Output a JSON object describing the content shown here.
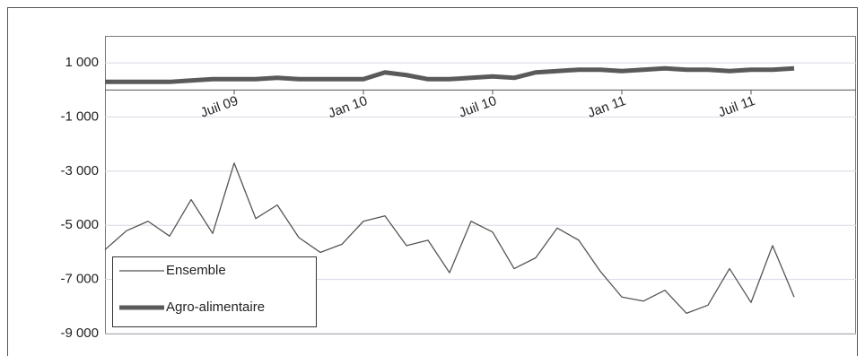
{
  "chart_data": {
    "type": "line",
    "categories": [
      null,
      null,
      null,
      null,
      null,
      null,
      "Juil 09",
      null,
      null,
      null,
      null,
      null,
      "Jan 10",
      null,
      null,
      null,
      null,
      null,
      "Juil 10",
      null,
      null,
      null,
      null,
      null,
      "Jan 11",
      null,
      null,
      null,
      null,
      null,
      "Juil 11",
      null,
      null
    ],
    "series": [
      {
        "name": "Ensemble",
        "color": "#555555",
        "values": [
          -5900,
          -5200,
          -4850,
          -5400,
          -4050,
          -5300,
          -2700,
          -4750,
          -4250,
          -5450,
          -6000,
          -5700,
          -4850,
          -4650,
          -5750,
          -5550,
          -6750,
          -4850,
          -5250,
          -6600,
          -6200,
          -5100,
          -5550,
          -6700,
          -7650,
          -7800,
          -7400,
          -8250,
          -7950,
          -6600,
          -7850,
          -5750,
          -7650
        ]
      },
      {
        "name": "Agro-alimentaire",
        "color": "#5a5a5a",
        "values": [
          300,
          300,
          300,
          300,
          350,
          400,
          400,
          400,
          450,
          400,
          400,
          400,
          400,
          650,
          550,
          400,
          400,
          450,
          500,
          450,
          650,
          700,
          750,
          750,
          700,
          750,
          800,
          750,
          750,
          700,
          750,
          750,
          800
        ]
      }
    ],
    "ylim": [
      -9000,
      2000
    ],
    "yticks": [
      {
        "value": 1000,
        "label": "1 000"
      },
      {
        "value": -1000,
        "label": "-1 000"
      },
      {
        "value": -3000,
        "label": "-3 000"
      },
      {
        "value": -5000,
        "label": "-5 000"
      },
      {
        "value": -7000,
        "label": "-7 000"
      },
      {
        "value": -9000,
        "label": "-9 000"
      }
    ],
    "grid": true,
    "legend": "bottom-left"
  }
}
